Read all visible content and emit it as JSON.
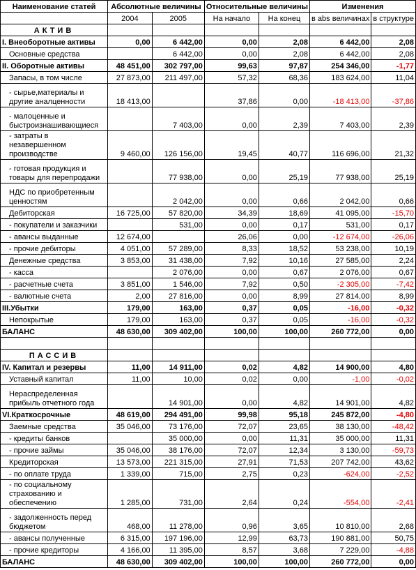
{
  "header": {
    "col_name": "Наименование статей",
    "abs": "Абсолютные величины",
    "rel": "Относительные величины",
    "chg": "Изменения"
  },
  "subheader": [
    "",
    "2004",
    "2005",
    "На начало",
    "На конец",
    "в abs величинах",
    "в структуре"
  ],
  "rows": [
    {
      "type": "section",
      "text": "АКТИВ"
    },
    {
      "type": "data",
      "bold": true,
      "ind": false,
      "label": "I. Внеоборотные активы",
      "v": [
        "0,00",
        "6 442,00",
        "0,00",
        "2,08",
        "6 442,00",
        "2,08"
      ],
      "neg": [
        false,
        false
      ]
    },
    {
      "type": "data",
      "bold": false,
      "ind": true,
      "label": "Основные средства",
      "v": [
        "",
        "6 442,00",
        "0,00",
        "2,08",
        "6 442,00",
        "2,08"
      ],
      "neg": [
        false,
        false
      ]
    },
    {
      "type": "data",
      "bold": true,
      "ind": false,
      "label": "II. Оборотные активы",
      "v": [
        "48 451,00",
        "302 797,00",
        "99,63",
        "97,87",
        "254 346,00",
        "-1,77"
      ],
      "neg": [
        false,
        true
      ]
    },
    {
      "type": "data",
      "bold": false,
      "ind": true,
      "label": "Запасы, в том числе",
      "v": [
        "27 873,00",
        "211 497,00",
        "57,32",
        "68,36",
        "183 624,00",
        "11,04"
      ],
      "neg": [
        false,
        false
      ]
    },
    {
      "type": "data",
      "bold": false,
      "ind": true,
      "h": 2,
      "label": "- сырье,материалы и другие аналценности",
      "v": [
        "18 413,00",
        "",
        "37,86",
        "0,00",
        "-18 413,00",
        "-37,86"
      ],
      "neg": [
        true,
        true
      ]
    },
    {
      "type": "data",
      "bold": false,
      "ind": true,
      "h": 2,
      "label": "- малоценные и быстроизнашивающиеся",
      "v": [
        "",
        "7 403,00",
        "0,00",
        "2,39",
        "7 403,00",
        "2,39"
      ],
      "neg": [
        false,
        false
      ]
    },
    {
      "type": "data",
      "bold": false,
      "ind": true,
      "h": 2,
      "label": "- затраты в незавершенном производстве",
      "v": [
        "9 460,00",
        "126 156,00",
        "19,45",
        "40,77",
        "116 696,00",
        "21,32"
      ],
      "neg": [
        false,
        false
      ]
    },
    {
      "type": "data",
      "bold": false,
      "ind": true,
      "h": 2,
      "label": "- готовая продукция и товары для перепродажи",
      "v": [
        "",
        "77 938,00",
        "0,00",
        "25,19",
        "77 938,00",
        "25,19"
      ],
      "neg": [
        false,
        false
      ]
    },
    {
      "type": "data",
      "bold": false,
      "ind": true,
      "h": 2,
      "label": "НДС по приобретенным ценностям",
      "v": [
        "",
        "2 042,00",
        "0,00",
        "0,66",
        "2 042,00",
        "0,66"
      ],
      "neg": [
        false,
        false
      ]
    },
    {
      "type": "data",
      "bold": false,
      "ind": true,
      "label": "Дебиторская",
      "v": [
        "16 725,00",
        "57 820,00",
        "34,39",
        "18,69",
        "41 095,00",
        "-15,70"
      ],
      "neg": [
        false,
        true
      ]
    },
    {
      "type": "data",
      "bold": false,
      "ind": true,
      "label": "- покупатели и заказчики",
      "v": [
        "",
        "531,00",
        "0,00",
        "0,17",
        "531,00",
        "0,17"
      ],
      "neg": [
        false,
        false
      ]
    },
    {
      "type": "data",
      "bold": false,
      "ind": true,
      "label": "- авансы выданные",
      "v": [
        "12 674,00",
        "",
        "26,06",
        "0,00",
        "-12 674,00",
        "-26,06"
      ],
      "neg": [
        true,
        true
      ]
    },
    {
      "type": "data",
      "bold": false,
      "ind": true,
      "label": "- прочие дебиторы",
      "v": [
        "4 051,00",
        "57 289,00",
        "8,33",
        "18,52",
        "53 238,00",
        "10,19"
      ],
      "neg": [
        false,
        false
      ]
    },
    {
      "type": "data",
      "bold": false,
      "ind": true,
      "label": "Денежные средства",
      "v": [
        "3 853,00",
        "31 438,00",
        "7,92",
        "10,16",
        "27 585,00",
        "2,24"
      ],
      "neg": [
        false,
        false
      ]
    },
    {
      "type": "data",
      "bold": false,
      "ind": true,
      "label": "- касса",
      "v": [
        "",
        "2 076,00",
        "0,00",
        "0,67",
        "2 076,00",
        "0,67"
      ],
      "neg": [
        false,
        false
      ]
    },
    {
      "type": "data",
      "bold": false,
      "ind": true,
      "label": "- расчетные счета",
      "v": [
        "3 851,00",
        "1 546,00",
        "7,92",
        "0,50",
        "-2 305,00",
        "-7,42"
      ],
      "neg": [
        true,
        true
      ]
    },
    {
      "type": "data",
      "bold": false,
      "ind": true,
      "label": "- валютные счета",
      "v": [
        "2,00",
        "27 816,00",
        "0,00",
        "8,99",
        "27 814,00",
        "8,99"
      ],
      "neg": [
        false,
        false
      ]
    },
    {
      "type": "data",
      "bold": true,
      "ind": false,
      "label": "III.Убытки",
      "v": [
        "179,00",
        "163,00",
        "0,37",
        "0,05",
        "-16,00",
        "-0,32"
      ],
      "neg": [
        true,
        true
      ]
    },
    {
      "type": "data",
      "bold": false,
      "ind": true,
      "label": "Непокрытые",
      "v": [
        "179,00",
        "163,00",
        "0,37",
        "0,05",
        "-16,00",
        "-0,32"
      ],
      "neg": [
        true,
        true
      ]
    },
    {
      "type": "data",
      "bold": true,
      "ind": false,
      "label": "БАЛАНС",
      "v": [
        "48 630,00",
        "309 402,00",
        "100,00",
        "100,00",
        "260 772,00",
        "0,00"
      ],
      "neg": [
        false,
        false
      ]
    },
    {
      "type": "blank"
    },
    {
      "type": "section",
      "text": "ПАССИВ"
    },
    {
      "type": "data",
      "bold": true,
      "ind": false,
      "label": "IV. Капитал и резервы",
      "v": [
        "11,00",
        "14 911,00",
        "0,02",
        "4,82",
        "14 900,00",
        "4,80"
      ],
      "neg": [
        false,
        false
      ]
    },
    {
      "type": "data",
      "bold": false,
      "ind": true,
      "label": "Уставный капитал",
      "v": [
        "11,00",
        "10,00",
        "0,02",
        "0,00",
        "-1,00",
        "-0,02"
      ],
      "neg": [
        true,
        true
      ]
    },
    {
      "type": "data",
      "bold": false,
      "ind": true,
      "h": 2,
      "label": "Нераспределенная прибыль отчетного года",
      "v": [
        "",
        "14 901,00",
        "0,00",
        "4,82",
        "14 901,00",
        "4,82"
      ],
      "neg": [
        false,
        false
      ]
    },
    {
      "type": "data",
      "bold": true,
      "ind": false,
      "label": "VI.Краткосрочные",
      "v": [
        "48 619,00",
        "294 491,00",
        "99,98",
        "95,18",
        "245 872,00",
        "-4,80"
      ],
      "neg": [
        false,
        true
      ]
    },
    {
      "type": "data",
      "bold": false,
      "ind": true,
      "label": "Заемные средства",
      "v": [
        "35 046,00",
        "73 176,00",
        "72,07",
        "23,65",
        "38 130,00",
        "-48,42"
      ],
      "neg": [
        false,
        true
      ]
    },
    {
      "type": "data",
      "bold": false,
      "ind": true,
      "label": "- кредиты банков",
      "v": [
        "",
        "35 000,00",
        "0,00",
        "11,31",
        "35 000,00",
        "11,31"
      ],
      "neg": [
        false,
        false
      ]
    },
    {
      "type": "data",
      "bold": false,
      "ind": true,
      "label": "- прочие займы",
      "v": [
        "35 046,00",
        "38 176,00",
        "72,07",
        "12,34",
        "3 130,00",
        "-59,73"
      ],
      "neg": [
        false,
        true
      ]
    },
    {
      "type": "data",
      "bold": false,
      "ind": true,
      "label": "Кредиторская",
      "v": [
        "13 573,00",
        "221 315,00",
        "27,91",
        "71,53",
        "207 742,00",
        "43,62"
      ],
      "neg": [
        false,
        false
      ]
    },
    {
      "type": "data",
      "bold": false,
      "ind": true,
      "label": "- по оплате труда",
      "v": [
        "1 339,00",
        "715,00",
        "2,75",
        "0,23",
        "-624,00",
        "-2,52"
      ],
      "neg": [
        true,
        true
      ]
    },
    {
      "type": "data",
      "bold": false,
      "ind": true,
      "h": 2,
      "label": "- по социальному страхованию и обеспечению",
      "v": [
        "1 285,00",
        "731,00",
        "2,64",
        "0,24",
        "-554,00",
        "-2,41"
      ],
      "neg": [
        true,
        true
      ]
    },
    {
      "type": "data",
      "bold": false,
      "ind": true,
      "h": 2,
      "label": "- задолженность перед бюджетом",
      "v": [
        "468,00",
        "11 278,00",
        "0,96",
        "3,65",
        "10 810,00",
        "2,68"
      ],
      "neg": [
        false,
        false
      ]
    },
    {
      "type": "data",
      "bold": false,
      "ind": true,
      "label": "- авансы полученные",
      "v": [
        "6 315,00",
        "197 196,00",
        "12,99",
        "63,73",
        "190 881,00",
        "50,75"
      ],
      "neg": [
        false,
        false
      ]
    },
    {
      "type": "data",
      "bold": false,
      "ind": true,
      "label": "- прочие кредиторы",
      "v": [
        "4 166,00",
        "11 395,00",
        "8,57",
        "3,68",
        "7 229,00",
        "-4,88"
      ],
      "neg": [
        false,
        true
      ]
    },
    {
      "type": "data",
      "bold": true,
      "ind": false,
      "label": "БАЛАНС",
      "v": [
        "48 630,00",
        "309 402,00",
        "100,00",
        "100,00",
        "260 772,00",
        "0,00"
      ],
      "neg": [
        false,
        false
      ]
    }
  ]
}
